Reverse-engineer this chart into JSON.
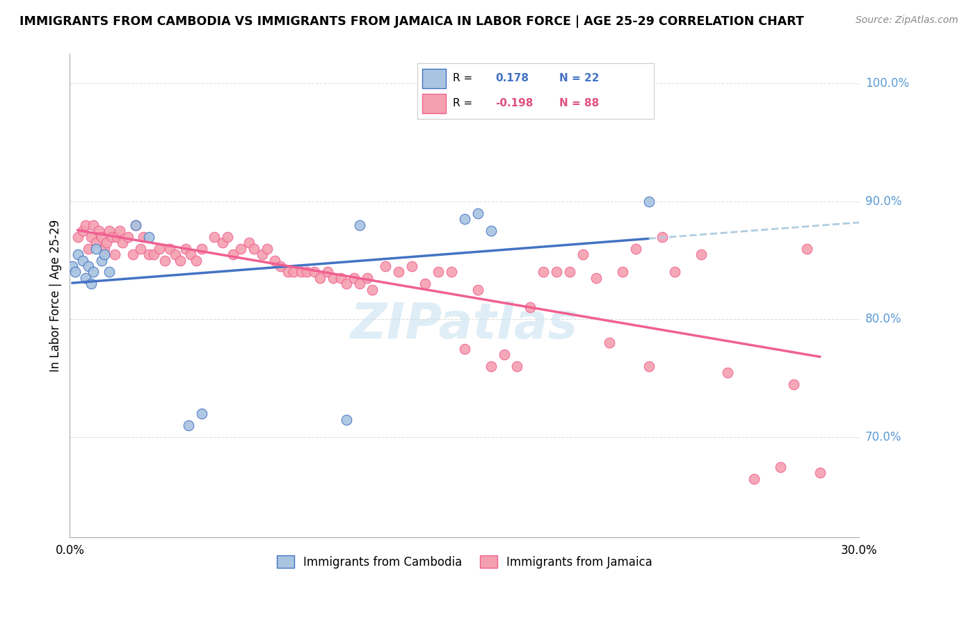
{
  "title": "IMMIGRANTS FROM CAMBODIA VS IMMIGRANTS FROM JAMAICA IN LABOR FORCE | AGE 25-29 CORRELATION CHART",
  "source": "Source: ZipAtlas.com",
  "ylabel_label": "In Labor Force | Age 25-29",
  "legend_labels": [
    "Immigrants from Cambodia",
    "Immigrants from Jamaica"
  ],
  "color_cambodia": "#a8c4e0",
  "color_jamaica": "#f4a0b0",
  "color_line_cambodia": "#4472c4",
  "color_line_jamaica": "#f06090",
  "color_dashed": "#b0cce0",
  "xlim": [
    0.0,
    0.3
  ],
  "ylim": [
    0.615,
    1.025
  ],
  "yticks": [
    0.7,
    0.8,
    0.9,
    1.0
  ],
  "ytick_labels": [
    "70.0%",
    "80.0%",
    "90.0%",
    "100.0%"
  ],
  "xticks": [
    0.0,
    0.05,
    0.1,
    0.15,
    0.2,
    0.25,
    0.3
  ],
  "cambodia_x": [
    0.001,
    0.002,
    0.003,
    0.005,
    0.006,
    0.007,
    0.008,
    0.009,
    0.01,
    0.012,
    0.013,
    0.015,
    0.025,
    0.03,
    0.045,
    0.05,
    0.105,
    0.11,
    0.15,
    0.155,
    0.16,
    0.22
  ],
  "cambodia_y": [
    0.845,
    0.84,
    0.855,
    0.85,
    0.835,
    0.845,
    0.83,
    0.84,
    0.86,
    0.85,
    0.855,
    0.84,
    0.88,
    0.87,
    0.71,
    0.72,
    0.715,
    0.88,
    0.885,
    0.89,
    0.875,
    0.9
  ],
  "jamaica_x": [
    0.003,
    0.005,
    0.006,
    0.007,
    0.008,
    0.009,
    0.01,
    0.011,
    0.012,
    0.013,
    0.014,
    0.015,
    0.016,
    0.017,
    0.018,
    0.019,
    0.02,
    0.022,
    0.024,
    0.025,
    0.027,
    0.028,
    0.03,
    0.032,
    0.034,
    0.036,
    0.038,
    0.04,
    0.042,
    0.044,
    0.046,
    0.048,
    0.05,
    0.055,
    0.058,
    0.06,
    0.062,
    0.065,
    0.068,
    0.07,
    0.073,
    0.075,
    0.078,
    0.08,
    0.083,
    0.085,
    0.088,
    0.09,
    0.093,
    0.095,
    0.098,
    0.1,
    0.103,
    0.105,
    0.108,
    0.11,
    0.113,
    0.115,
    0.12,
    0.125,
    0.13,
    0.135,
    0.14,
    0.145,
    0.15,
    0.155,
    0.16,
    0.165,
    0.17,
    0.175,
    0.18,
    0.185,
    0.19,
    0.195,
    0.2,
    0.205,
    0.21,
    0.215,
    0.22,
    0.225,
    0.23,
    0.24,
    0.25,
    0.26,
    0.27,
    0.275,
    0.28,
    0.285
  ],
  "jamaica_y": [
    0.87,
    0.875,
    0.88,
    0.86,
    0.87,
    0.88,
    0.865,
    0.875,
    0.87,
    0.86,
    0.865,
    0.875,
    0.87,
    0.855,
    0.87,
    0.875,
    0.865,
    0.87,
    0.855,
    0.88,
    0.86,
    0.87,
    0.855,
    0.855,
    0.86,
    0.85,
    0.86,
    0.855,
    0.85,
    0.86,
    0.855,
    0.85,
    0.86,
    0.87,
    0.865,
    0.87,
    0.855,
    0.86,
    0.865,
    0.86,
    0.855,
    0.86,
    0.85,
    0.845,
    0.84,
    0.84,
    0.84,
    0.84,
    0.84,
    0.835,
    0.84,
    0.835,
    0.835,
    0.83,
    0.835,
    0.83,
    0.835,
    0.825,
    0.845,
    0.84,
    0.845,
    0.83,
    0.84,
    0.84,
    0.775,
    0.825,
    0.76,
    0.77,
    0.76,
    0.81,
    0.84,
    0.84,
    0.84,
    0.855,
    0.835,
    0.78,
    0.84,
    0.86,
    0.76,
    0.87,
    0.84,
    0.855,
    0.755,
    0.665,
    0.675,
    0.745,
    0.86,
    0.67
  ],
  "r_cambodia": "0.178",
  "n_cambodia": "22",
  "r_jamaica": "-0.198",
  "n_jamaica": "88"
}
